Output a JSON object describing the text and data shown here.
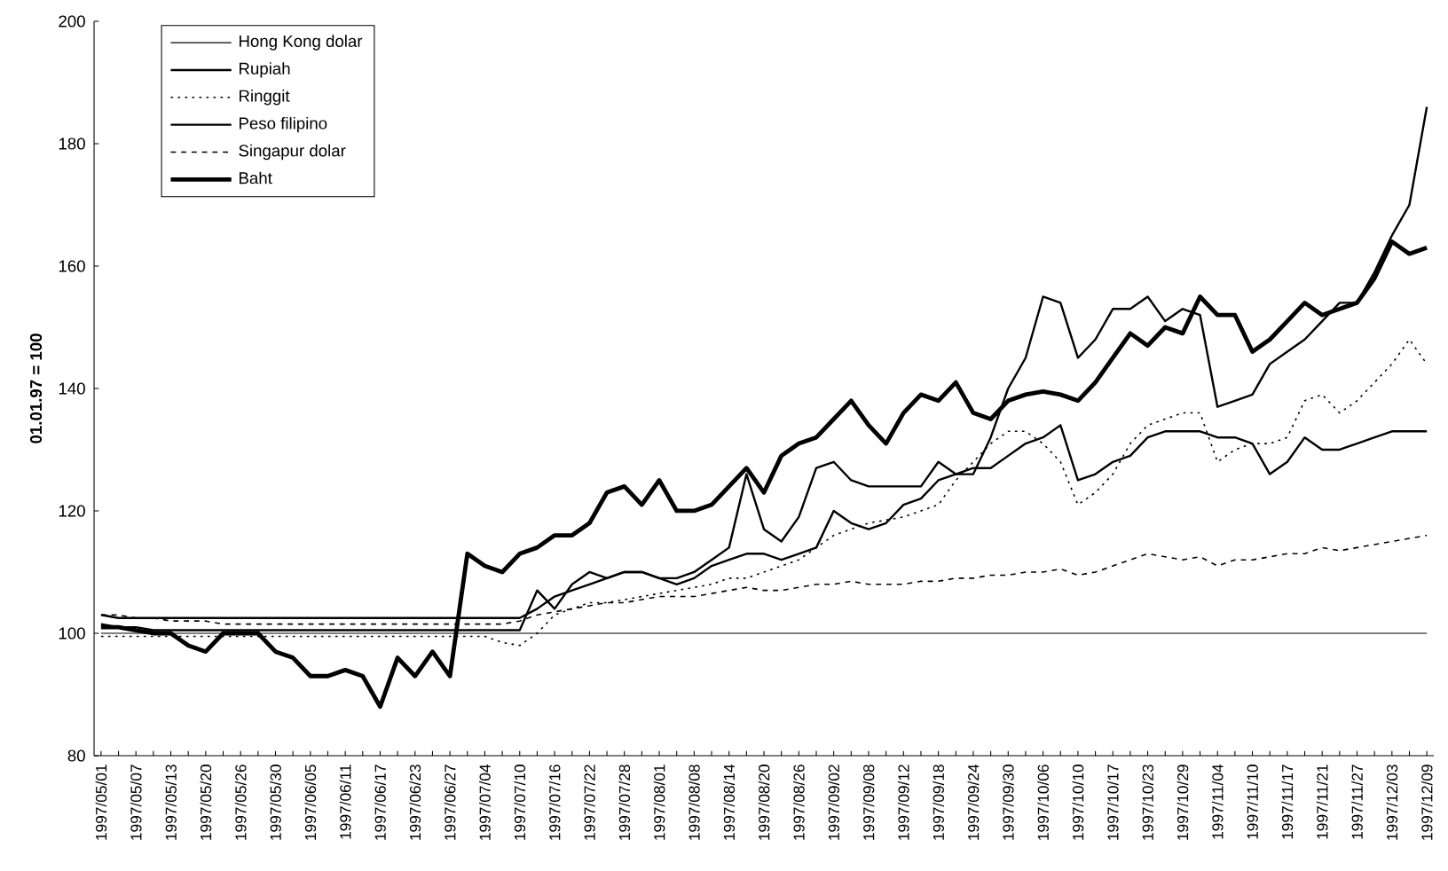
{
  "chart_data": {
    "type": "line",
    "ylabel": "01.01.97 = 100",
    "categories": [
      "1997/05/01",
      null,
      "1997/05/07",
      null,
      "1997/05/13",
      null,
      "1997/05/20",
      null,
      "1997/05/26",
      null,
      "1997/05/30",
      null,
      "1997/06/05",
      null,
      "1997/06/11",
      null,
      "1997/06/17",
      null,
      "1997/06/23",
      null,
      "1997/06/27",
      null,
      "1997/07/04",
      null,
      "1997/07/10",
      null,
      "1997/07/16",
      null,
      "1997/07/22",
      null,
      "1997/07/28",
      null,
      "1997/08/01",
      null,
      "1997/08/08",
      null,
      "1997/08/14",
      null,
      "1997/08/20",
      null,
      "1997/08/26",
      null,
      "1997/09/02",
      null,
      "1997/09/08",
      null,
      "1997/09/12",
      null,
      "1997/09/18",
      null,
      "1997/09/24",
      null,
      "1997/09/30",
      null,
      "1997/10/06",
      null,
      "1997/10/10",
      null,
      "1997/10/17",
      null,
      "1997/10/23",
      null,
      "1997/10/29",
      null,
      "1997/11/04",
      null,
      "1997/11/10",
      null,
      "1997/11/17",
      null,
      "1997/11/21",
      null,
      "1997/11/27",
      null,
      "1997/12/03",
      null,
      "1997/12/09"
    ],
    "ylim": [
      80,
      200
    ],
    "yticks": [
      80,
      100,
      120,
      140,
      160,
      180,
      200
    ],
    "legend": "top left",
    "series": [
      {
        "name": "Hong Kong dolar",
        "color": "#000000",
        "line_style": "solid",
        "values": [
          100,
          100,
          100,
          100,
          100,
          100,
          100,
          100,
          100,
          100,
          100,
          100,
          100,
          100,
          100,
          100,
          100,
          100,
          100,
          100,
          100,
          100,
          100,
          100,
          100,
          100,
          100,
          100,
          100,
          100,
          100,
          100,
          100,
          100,
          100,
          100,
          100,
          100,
          100,
          100,
          100,
          100,
          100,
          100,
          100,
          100,
          100,
          100,
          100,
          100,
          100,
          100,
          100,
          100,
          100,
          100,
          100,
          100,
          100,
          100,
          100,
          100,
          100,
          100,
          100,
          100,
          100,
          100,
          100,
          100,
          100,
          100,
          100,
          100,
          100,
          100,
          100
        ]
      },
      {
        "name": "Rupiah",
        "color": "#000000",
        "line_style": "solid",
        "values": [
          101.5,
          101,
          101,
          100.5,
          100.5,
          100.5,
          100.5,
          100.5,
          100.5,
          100.5,
          100.5,
          100.5,
          100.5,
          100.5,
          100.5,
          100.5,
          100.5,
          100.5,
          100.5,
          100.5,
          100.5,
          100.5,
          100.5,
          100.5,
          100.5,
          107,
          104,
          108,
          110,
          109,
          110,
          110,
          109,
          109,
          110,
          112,
          114,
          126,
          117,
          115,
          119,
          127,
          128,
          125,
          124,
          124,
          124,
          124,
          128,
          126,
          126,
          132,
          140,
          145,
          155,
          154,
          145,
          148,
          153,
          153,
          155,
          151,
          153,
          152,
          137,
          138,
          139,
          144,
          146,
          148,
          151,
          154,
          154,
          159,
          165,
          170,
          186
        ]
      },
      {
        "name": "Ringgit",
        "color": "#000000",
        "line_style": "dotted",
        "values": [
          99.5,
          99.5,
          99.5,
          99.5,
          99.5,
          99.5,
          99.5,
          99.5,
          99.5,
          99.5,
          99.5,
          99.5,
          99.5,
          99.5,
          99.5,
          99.5,
          99.5,
          99.5,
          99.5,
          99.5,
          99.5,
          99.5,
          99.5,
          98.5,
          98,
          100,
          103,
          104,
          105,
          105,
          105.5,
          106,
          106.5,
          107,
          107.5,
          108,
          109,
          109,
          110,
          111,
          112,
          114,
          116,
          117,
          118,
          118.5,
          119,
          120,
          121,
          125,
          128,
          131,
          133,
          133,
          131,
          128,
          121,
          123,
          126,
          131,
          134,
          135,
          136,
          136,
          128,
          130,
          131,
          131,
          132,
          138,
          139,
          136,
          138,
          141,
          144,
          148,
          144
        ]
      },
      {
        "name": "Peso filipino",
        "color": "#000000",
        "line_style": "solid",
        "values": [
          103,
          102.5,
          102.5,
          102.5,
          102.5,
          102.5,
          102.5,
          102.5,
          102.5,
          102.5,
          102.5,
          102.5,
          102.5,
          102.5,
          102.5,
          102.5,
          102.5,
          102.5,
          102.5,
          102.5,
          102.5,
          102.5,
          102.5,
          102.5,
          102.5,
          104,
          106,
          107,
          108,
          109,
          110,
          110,
          109,
          108,
          109,
          111,
          112,
          113,
          113,
          112,
          113,
          114,
          120,
          118,
          117,
          118,
          121,
          122,
          125,
          126,
          127,
          127,
          129,
          131,
          132,
          134,
          125,
          126,
          128,
          129,
          132,
          133,
          133,
          133,
          132,
          132,
          131,
          126,
          128,
          132,
          130,
          130,
          131,
          132,
          133,
          133,
          133
        ]
      },
      {
        "name": "Singapur dolar",
        "color": "#000000",
        "line_style": "dashed",
        "values": [
          103,
          103,
          102.5,
          102.5,
          102,
          102,
          102,
          101.5,
          101.5,
          101.5,
          101.5,
          101.5,
          101.5,
          101.5,
          101.5,
          101.5,
          101.5,
          101.5,
          101.5,
          101.5,
          101.5,
          101.5,
          101.5,
          101.5,
          102,
          103,
          103.5,
          104,
          104.5,
          105,
          105,
          105.5,
          106,
          106,
          106,
          106.5,
          107,
          107.5,
          107,
          107,
          107.5,
          108,
          108,
          108.5,
          108,
          108,
          108,
          108.5,
          108.5,
          109,
          109,
          109.5,
          109.5,
          110,
          110,
          110.5,
          109.5,
          110,
          111,
          112,
          113,
          112.5,
          112,
          112.5,
          111,
          112,
          112,
          112.5,
          113,
          113,
          114,
          113.5,
          114,
          114.5,
          115,
          115.5,
          116
        ]
      },
      {
        "name": "Baht",
        "color": "#000000",
        "line_style": "solid",
        "values": [
          101,
          101,
          100.5,
          100,
          100,
          98,
          97,
          100,
          100,
          100,
          97,
          96,
          93,
          93,
          94,
          93,
          88,
          96,
          93,
          97,
          93,
          113,
          111,
          110,
          113,
          114,
          116,
          116,
          118,
          123,
          124,
          121,
          125,
          120,
          120,
          121,
          124,
          127,
          123,
          129,
          131,
          132,
          135,
          138,
          134,
          131,
          136,
          139,
          138,
          141,
          136,
          135,
          138,
          139,
          139.5,
          139,
          138,
          141,
          145,
          149,
          147,
          150,
          149,
          155,
          152,
          152,
          146,
          148,
          151,
          154,
          152,
          153,
          154,
          158,
          164,
          162,
          163
        ]
      }
    ]
  }
}
